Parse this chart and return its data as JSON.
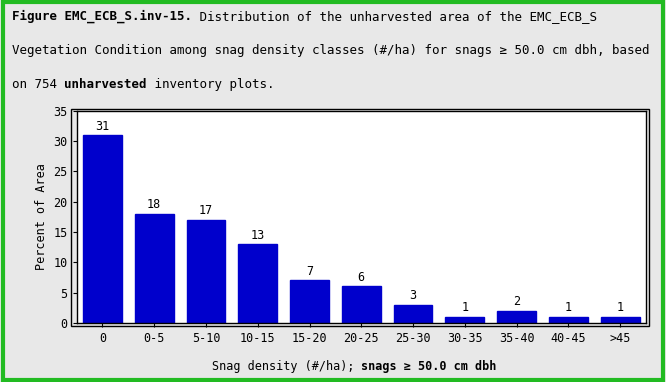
{
  "categories": [
    "0",
    "0-5",
    "5-10",
    "10-15",
    "15-20",
    "20-25",
    "25-30",
    "30-35",
    "35-40",
    "40-45",
    ">45"
  ],
  "values": [
    31,
    18,
    17,
    13,
    7,
    6,
    3,
    1,
    2,
    1,
    1
  ],
  "bar_color": "#0000CC",
  "ylabel": "Percent of Area",
  "xlabel_normal": "Snag density (#/ha); ",
  "xlabel_bold": "snags ≥ 50.0 cm dbh",
  "ylim": [
    0,
    35
  ],
  "yticks": [
    0,
    5,
    10,
    15,
    20,
    25,
    30,
    35
  ],
  "line1_bold": "Figure EMC_ECB_S.inv-15.",
  "line1_normal": " Distribution of the unharvested area of the EMC_ECB_S",
  "line2": "Vegetation Condition among snag density classes (#/ha) for snags ≥ 50.0 cm dbh, based",
  "line3_pre": "on 754 ",
  "line3_bold": "unharvested",
  "line3_post": " inventory plots.",
  "outer_border_color": "#22BB22",
  "figure_bg": "#E8E8E8",
  "plot_bg": "#FFFFFF",
  "title_fontsize": 9.0,
  "axis_fontsize": 8.5
}
